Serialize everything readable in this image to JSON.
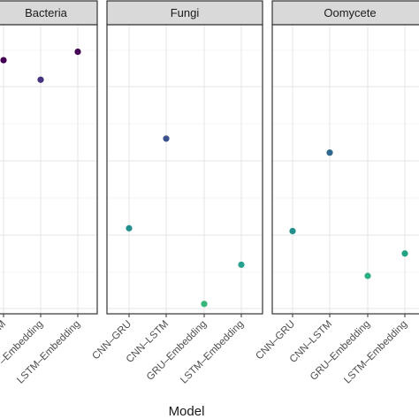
{
  "chart_data": {
    "type": "scatter",
    "x_label": "Model",
    "y_range": [
      0,
      1
    ],
    "grid": true,
    "panels": [
      {
        "name": "Bacteria",
        "categories": [
          "CNN–LSTM",
          "GRU–Embedding",
          "LSTM–Embedding"
        ],
        "tick_labels": [
          "–LSTM",
          "–Embedding",
          "LSTM–Embedding"
        ],
        "points": [
          {
            "x": "CNN–LSTM",
            "y": 0.88,
            "color": "#440154"
          },
          {
            "x": "GRU–Embedding",
            "y": 0.81,
            "color": "#46327e"
          },
          {
            "x": "LSTM–Embedding",
            "y": 0.91,
            "color": "#440154"
          }
        ]
      },
      {
        "name": "Fungi",
        "categories": [
          "CNN–GRU",
          "CNN–LSTM",
          "GRU–Embedding",
          "LSTM–Embedding"
        ],
        "tick_labels": [
          "CNN–GRU",
          "CNN–LSTM",
          "GRU–Embedding",
          "LSTM–Embedding"
        ],
        "points": [
          {
            "x": "CNN–GRU",
            "y": 0.28,
            "color": "#21908d"
          },
          {
            "x": "CNN–LSTM",
            "y": 0.6,
            "color": "#3b528b"
          },
          {
            "x": "GRU–Embedding",
            "y": 0.01,
            "color": "#35b779"
          },
          {
            "x": "LSTM–Embedding",
            "y": 0.15,
            "color": "#25a18e"
          }
        ]
      },
      {
        "name": "Oomycete",
        "categories": [
          "CNN–GRU",
          "CNN–LSTM",
          "GRU–Embedding",
          "LSTM–Embedding"
        ],
        "tick_labels": [
          "CNN–GRU",
          "CNN–LSTM",
          "GRU–Embedding",
          "LSTM–Embedding"
        ],
        "points": [
          {
            "x": "CNN–GRU",
            "y": 0.27,
            "color": "#21908d"
          },
          {
            "x": "CNN–LSTM",
            "y": 0.55,
            "color": "#31688e"
          },
          {
            "x": "GRU–Embedding",
            "y": 0.11,
            "color": "#2ab07f"
          },
          {
            "x": "LSTM–Embedding",
            "y": 0.19,
            "color": "#22a384"
          }
        ]
      }
    ]
  }
}
